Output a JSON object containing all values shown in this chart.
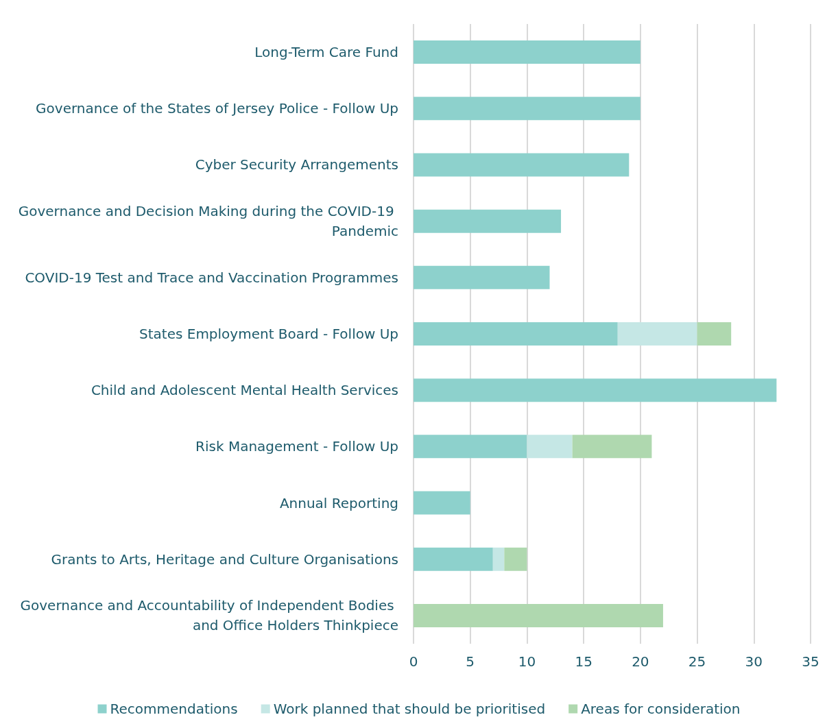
{
  "chart_data": {
    "type": "bar",
    "orientation": "horizontal",
    "stacked": true,
    "categories": [
      "Long-Term Care Fund",
      "Governance of the States of Jersey Police - Follow Up",
      "Cyber Security Arrangements",
      "Governance and Decision Making during the COVID-19 Pandemic",
      "COVID-19 Test and Trace and Vaccination Programmes",
      "States Employment Board - Follow Up",
      "Child and Adolescent Mental Health Services",
      "Risk Management - Follow Up",
      "Annual Reporting",
      "Grants to Arts, Heritage and Culture Organisations",
      "Governance and Accountability of Independent Bodies and Office Holders Thinkpiece"
    ],
    "series": [
      {
        "name": "Recommendations",
        "color": "#8dd1cc",
        "values": [
          20,
          20,
          19,
          13,
          12,
          18,
          32,
          10,
          5,
          7,
          null
        ]
      },
      {
        "name": "Work planned that should be prioritised",
        "color": "#c5e7e5",
        "values": [
          null,
          null,
          null,
          null,
          null,
          7,
          null,
          4,
          null,
          1,
          null
        ]
      },
      {
        "name": "Areas for consideration",
        "color": "#afd8af",
        "values": [
          null,
          null,
          null,
          null,
          null,
          3,
          null,
          7,
          null,
          2,
          22
        ]
      }
    ],
    "xlim": [
      0,
      35
    ],
    "xticks": [
      0,
      5,
      10,
      15,
      20,
      25,
      30,
      35
    ],
    "grid": "x",
    "legend": "bottom"
  }
}
